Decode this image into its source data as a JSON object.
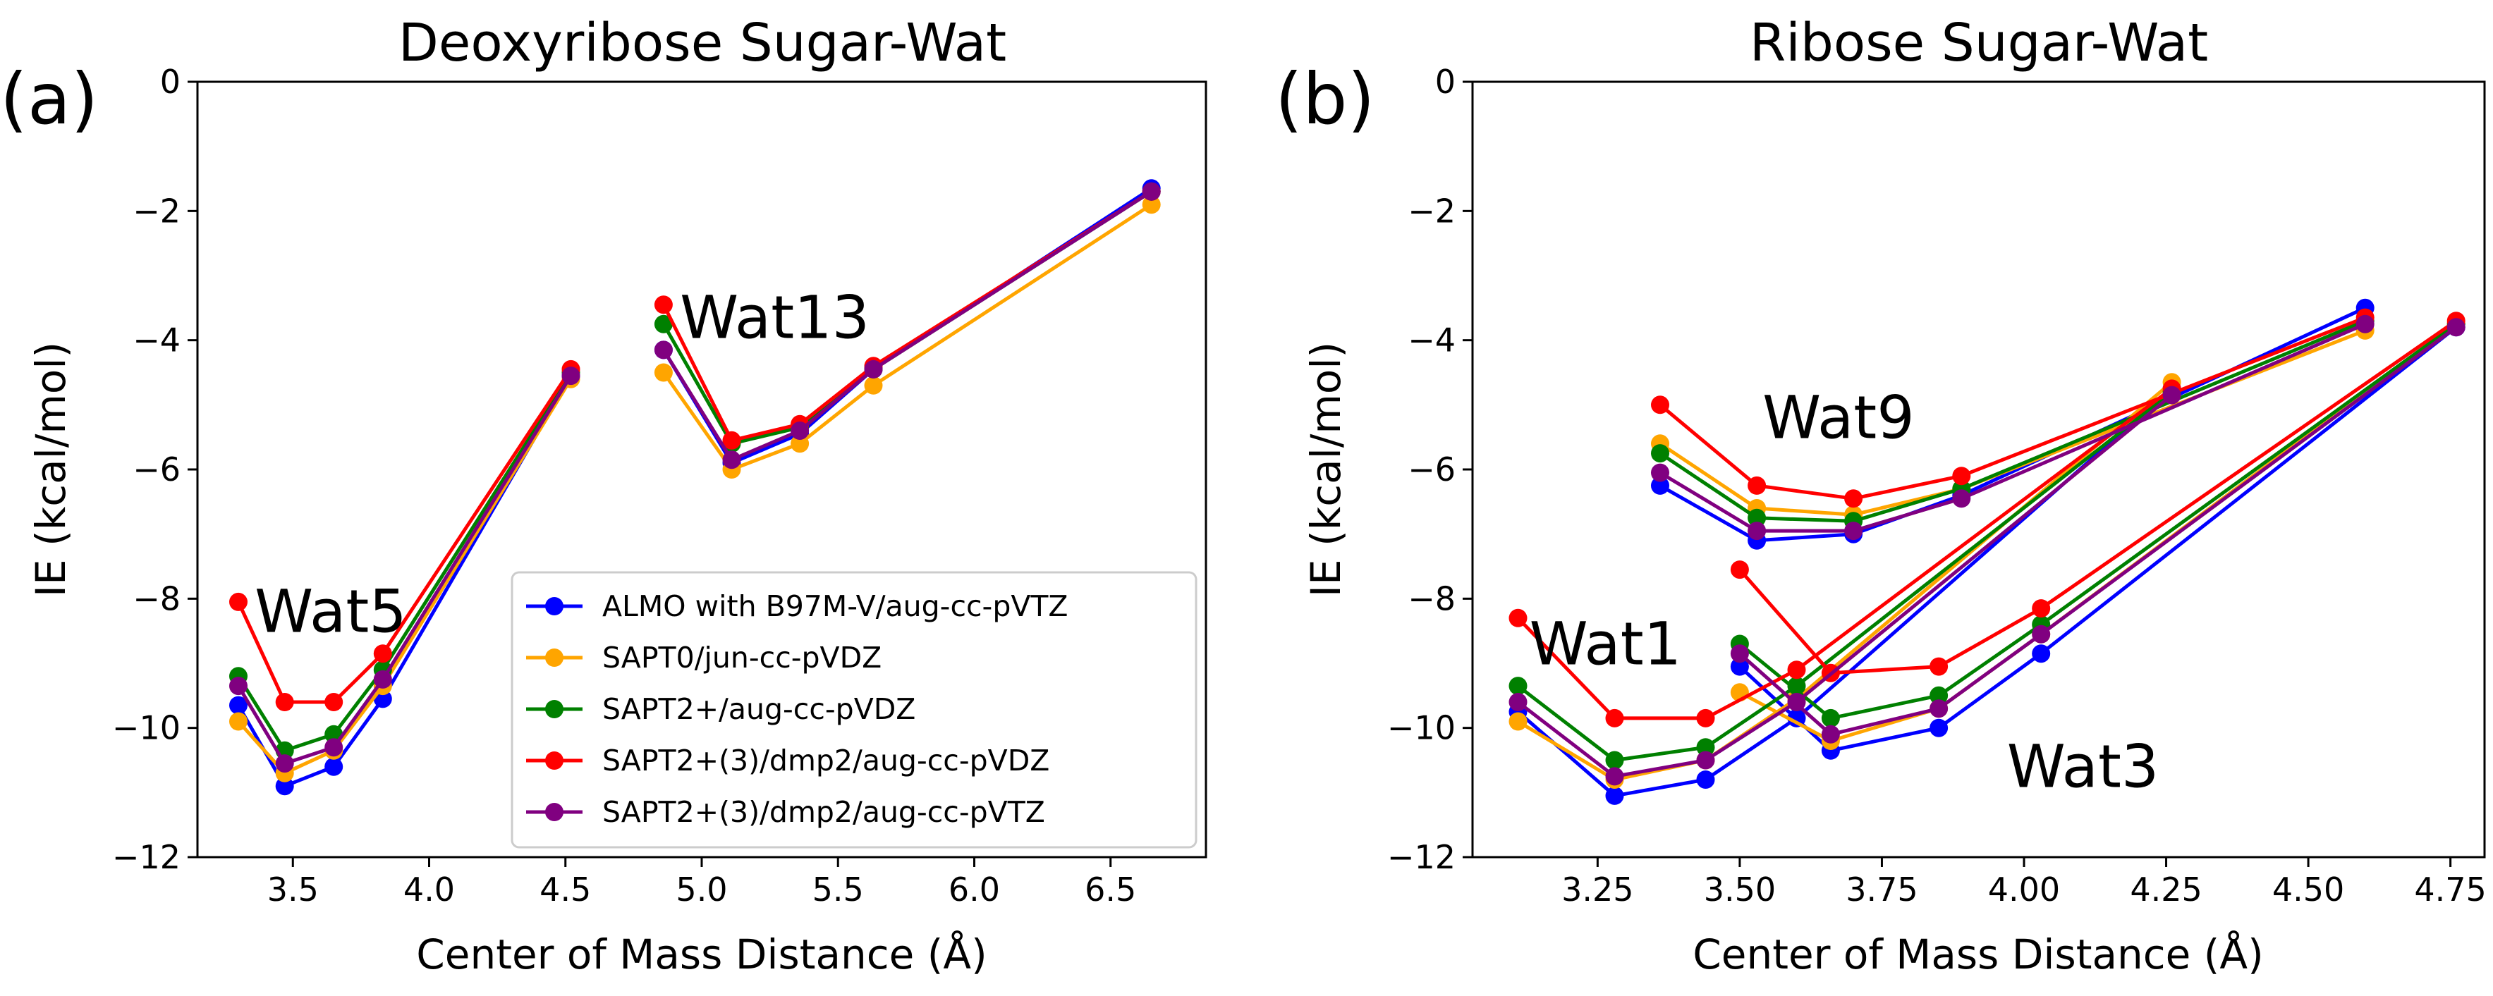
{
  "panel_labels": [
    "(a)",
    "(b)"
  ],
  "colors": {
    "ALMO with B97M-V/aug-cc-pVTZ": "#0000ff",
    "SAPT0/jun-cc-pVDZ": "#ffa500",
    "SAPT2+/aug-cc-pVDZ": "#008000",
    "SAPT2+(3)/dmp2/aug-cc-pVDZ": "#ff0000",
    "SAPT2+(3)/dmp2/aug-cc-pVTZ": "#800080"
  },
  "chart_data": [
    {
      "type": "line",
      "title": "Deoxyribose Sugar-Wat",
      "xlabel": "Center of Mass Distance (Å)",
      "ylabel": "IE (kcal/mol)",
      "xlim": [
        3.15,
        6.85
      ],
      "ylim": [
        -12,
        0
      ],
      "xticks": [
        3.5,
        4.0,
        4.5,
        5.0,
        5.5,
        6.0,
        6.5
      ],
      "xtick_labels": [
        "3.5",
        "4.0",
        "4.5",
        "5.0",
        "5.5",
        "6.0",
        "6.5"
      ],
      "yticks": [
        0,
        -2,
        -4,
        -6,
        -8,
        -10,
        -12
      ],
      "ytick_labels": [
        "0",
        "−2",
        "−4",
        "−6",
        "−8",
        "−10",
        "−12"
      ],
      "legend": true,
      "legend_position": "lower-right",
      "annotations": [
        {
          "text": "Wat5",
          "x": 3.36,
          "y": -8.2
        },
        {
          "text": "Wat13",
          "x": 4.92,
          "y": -3.65
        }
      ],
      "series": [
        {
          "name": "ALMO with B97M-V/aug-cc-pVTZ",
          "segments": [
            {
              "x": [
                3.3,
                3.47,
                3.65,
                3.83,
                4.52
              ],
              "y": [
                -9.65,
                -10.9,
                -10.6,
                -9.55,
                -4.55
              ]
            },
            {
              "x": [
                4.86,
                5.11,
                5.36,
                5.63,
                6.65
              ],
              "y": [
                -4.15,
                -5.9,
                -5.45,
                -4.45,
                -1.65
              ]
            }
          ]
        },
        {
          "name": "SAPT0/jun-cc-pVDZ",
          "segments": [
            {
              "x": [
                3.3,
                3.47,
                3.65,
                3.83,
                4.52
              ],
              "y": [
                -9.9,
                -10.7,
                -10.35,
                -9.35,
                -4.6
              ]
            },
            {
              "x": [
                4.86,
                5.11,
                5.36,
                5.63,
                6.65
              ],
              "y": [
                -4.5,
                -6.0,
                -5.6,
                -4.7,
                -1.9
              ]
            }
          ]
        },
        {
          "name": "SAPT2+/aug-cc-pVDZ",
          "segments": [
            {
              "x": [
                3.3,
                3.47,
                3.65,
                3.83,
                4.52
              ],
              "y": [
                -9.2,
                -10.35,
                -10.1,
                -9.1,
                -4.5
              ]
            },
            {
              "x": [
                4.86,
                5.11,
                5.36,
                5.63,
                6.65
              ],
              "y": [
                -3.75,
                -5.6,
                -5.35,
                -4.45,
                -1.7
              ]
            }
          ]
        },
        {
          "name": "SAPT2+(3)/dmp2/aug-cc-pVDZ",
          "segments": [
            {
              "x": [
                3.3,
                3.47,
                3.65,
                3.83,
                4.52
              ],
              "y": [
                -8.05,
                -9.6,
                -9.6,
                -8.85,
                -4.45
              ]
            },
            {
              "x": [
                4.86,
                5.11,
                5.36,
                5.63,
                6.65
              ],
              "y": [
                -3.45,
                -5.55,
                -5.3,
                -4.4,
                -1.7
              ]
            }
          ]
        },
        {
          "name": "SAPT2+(3)/dmp2/aug-cc-pVTZ",
          "segments": [
            {
              "x": [
                3.3,
                3.47,
                3.65,
                3.83,
                4.52
              ],
              "y": [
                -9.35,
                -10.55,
                -10.3,
                -9.25,
                -4.55
              ]
            },
            {
              "x": [
                4.86,
                5.11,
                5.36,
                5.63,
                6.65
              ],
              "y": [
                -4.15,
                -5.85,
                -5.4,
                -4.45,
                -1.7
              ]
            }
          ]
        }
      ]
    },
    {
      "type": "line",
      "title": "Ribose Sugar-Wat",
      "xlabel": "Center of Mass Distance (Å)",
      "ylabel": "IE (kcal/mol)",
      "xlim": [
        3.03,
        4.81
      ],
      "ylim": [
        -12,
        0
      ],
      "xticks": [
        3.25,
        3.5,
        3.75,
        4.0,
        4.25,
        4.5,
        4.75
      ],
      "xtick_labels": [
        "3.25",
        "3.50",
        "3.75",
        "4.00",
        "4.25",
        "4.50",
        "4.75"
      ],
      "yticks": [
        0,
        -2,
        -4,
        -6,
        -8,
        -10,
        -12
      ],
      "ytick_labels": [
        "0",
        "−2",
        "−4",
        "−6",
        "−8",
        "−10",
        "−12"
      ],
      "legend": false,
      "annotations": [
        {
          "text": "Wat9",
          "x": 3.54,
          "y": -5.2
        },
        {
          "text": "Wat1",
          "x": 3.13,
          "y": -8.7
        },
        {
          "text": "Wat3",
          "x": 3.97,
          "y": -10.6
        }
      ],
      "series": [
        {
          "name": "ALMO with B97M-V/aug-cc-pVTZ",
          "segments": [
            {
              "x": [
                3.11,
                3.28,
                3.44,
                3.6,
                4.26
              ],
              "y": [
                -9.75,
                -11.05,
                -10.8,
                -9.85,
                -4.75
              ]
            },
            {
              "x": [
                3.36,
                3.53,
                3.7,
                3.89,
                4.6
              ],
              "y": [
                -6.25,
                -7.1,
                -7.0,
                -6.4,
                -3.5
              ]
            },
            {
              "x": [
                3.5,
                3.66,
                3.85,
                4.03,
                4.76
              ],
              "y": [
                -9.05,
                -10.35,
                -10.0,
                -8.85,
                -3.8
              ]
            }
          ]
        },
        {
          "name": "SAPT0/jun-cc-pVDZ",
          "segments": [
            {
              "x": [
                3.11,
                3.28,
                3.44,
                3.6,
                4.26
              ],
              "y": [
                -9.9,
                -10.8,
                -10.5,
                -9.55,
                -4.65
              ]
            },
            {
              "x": [
                3.36,
                3.53,
                3.7,
                3.89,
                4.6
              ],
              "y": [
                -5.6,
                -6.6,
                -6.7,
                -6.3,
                -3.85
              ]
            },
            {
              "x": [
                3.5,
                3.66,
                3.85,
                4.03,
                4.76
              ],
              "y": [
                -9.45,
                -10.2,
                -9.7,
                -8.55,
                -3.75
              ]
            }
          ]
        },
        {
          "name": "SAPT2+/aug-cc-pVDZ",
          "segments": [
            {
              "x": [
                3.11,
                3.28,
                3.44,
                3.6,
                4.26
              ],
              "y": [
                -9.35,
                -10.5,
                -10.3,
                -9.35,
                -4.8
              ]
            },
            {
              "x": [
                3.36,
                3.53,
                3.7,
                3.89,
                4.6
              ],
              "y": [
                -5.75,
                -6.75,
                -6.8,
                -6.3,
                -3.7
              ]
            },
            {
              "x": [
                3.5,
                3.66,
                3.85,
                4.03,
                4.76
              ],
              "y": [
                -8.7,
                -9.85,
                -9.5,
                -8.4,
                -3.75
              ]
            }
          ]
        },
        {
          "name": "SAPT2+(3)/dmp2/aug-cc-pVDZ",
          "segments": [
            {
              "x": [
                3.11,
                3.28,
                3.44,
                3.6,
                4.26
              ],
              "y": [
                -8.3,
                -9.85,
                -9.85,
                -9.1,
                -4.75
              ]
            },
            {
              "x": [
                3.36,
                3.53,
                3.7,
                3.89,
                4.6
              ],
              "y": [
                -5.0,
                -6.25,
                -6.45,
                -6.1,
                -3.65
              ]
            },
            {
              "x": [
                3.5,
                3.66,
                3.85,
                4.03,
                4.76
              ],
              "y": [
                -7.55,
                -9.15,
                -9.05,
                -8.15,
                -3.7
              ]
            }
          ]
        },
        {
          "name": "SAPT2+(3)/dmp2/aug-cc-pVTZ",
          "segments": [
            {
              "x": [
                3.11,
                3.28,
                3.44,
                3.6,
                4.26
              ],
              "y": [
                -9.6,
                -10.75,
                -10.5,
                -9.6,
                -4.85
              ]
            },
            {
              "x": [
                3.36,
                3.53,
                3.7,
                3.89,
                4.6
              ],
              "y": [
                -6.05,
                -6.95,
                -6.95,
                -6.45,
                -3.75
              ]
            },
            {
              "x": [
                3.5,
                3.66,
                3.85,
                4.03,
                4.76
              ],
              "y": [
                -8.85,
                -10.1,
                -9.7,
                -8.55,
                -3.8
              ]
            }
          ]
        }
      ]
    }
  ]
}
